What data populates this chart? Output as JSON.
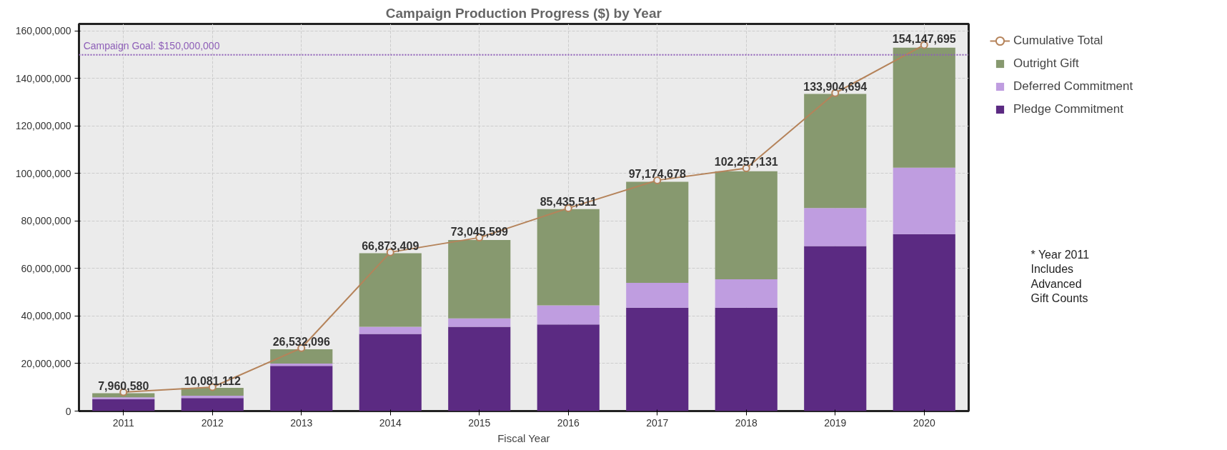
{
  "chart_data": {
    "type": "bar",
    "title": "Campaign Production Progress ($) by Year",
    "xlabel": "Fiscal Year",
    "categories": [
      "2011",
      "2012",
      "2013",
      "2014",
      "2015",
      "2016",
      "2017",
      "2018",
      "2019",
      "2020"
    ],
    "stacked": true,
    "series": [
      {
        "name": "Pledge Commitment",
        "color": "#5b2a82",
        "values": [
          5000000,
          5500000,
          19000000,
          32500000,
          35500000,
          36500000,
          43500000,
          43500000,
          69500000,
          74500000
        ]
      },
      {
        "name": "Deferred Commitment",
        "color": "#bf9de0",
        "values": [
          800000,
          1000000,
          1000000,
          3000000,
          3500000,
          8000000,
          10500000,
          12000000,
          16000000,
          28000000
        ]
      },
      {
        "name": "Outright Gift",
        "color": "#87996f",
        "values": [
          1700000,
          3300000,
          6000000,
          31000000,
          33000000,
          40500000,
          42500000,
          45500000,
          48000000,
          50500000
        ]
      },
      {
        "name": "Cumulative Total",
        "type": "line",
        "color": "#b5835a",
        "marker": "circle",
        "values": [
          7960580,
          10081112,
          26532096,
          66873409,
          73045599,
          85435511,
          97174678,
          102257131,
          133904694,
          154147695
        ],
        "value_labels": [
          "7,960,580",
          "10,081,112",
          "26,532,096",
          "66,873,409",
          "73,045,599",
          "85,435,511",
          "97,174,678",
          "102,257,131",
          "133,904,694",
          "154,147,695"
        ]
      }
    ],
    "ylim": [
      0,
      163000000
    ],
    "yticks": [
      {
        "value": 0,
        "label": "0"
      },
      {
        "value": 20000000,
        "label": "20,000,000"
      },
      {
        "value": 40000000,
        "label": "40,000,000"
      },
      {
        "value": 60000000,
        "label": "60,000,000"
      },
      {
        "value": 80000000,
        "label": "80,000,000"
      },
      {
        "value": 100000000,
        "label": "100,000,000"
      },
      {
        "value": 120000000,
        "label": "120,000,000"
      },
      {
        "value": 140000000,
        "label": "140,000,000"
      },
      {
        "value": 160000000,
        "label": "160,000,000"
      }
    ],
    "ref_lines": [
      {
        "axis": "y",
        "value": 150000000,
        "label": "Campaign Goal: $150,000,000",
        "color": "#8e5fb8",
        "line_style": "dotted"
      }
    ],
    "annotations": [
      "* Year 2011 Includes Advanced Gift Counts"
    ],
    "grid": true,
    "legend": "right"
  }
}
